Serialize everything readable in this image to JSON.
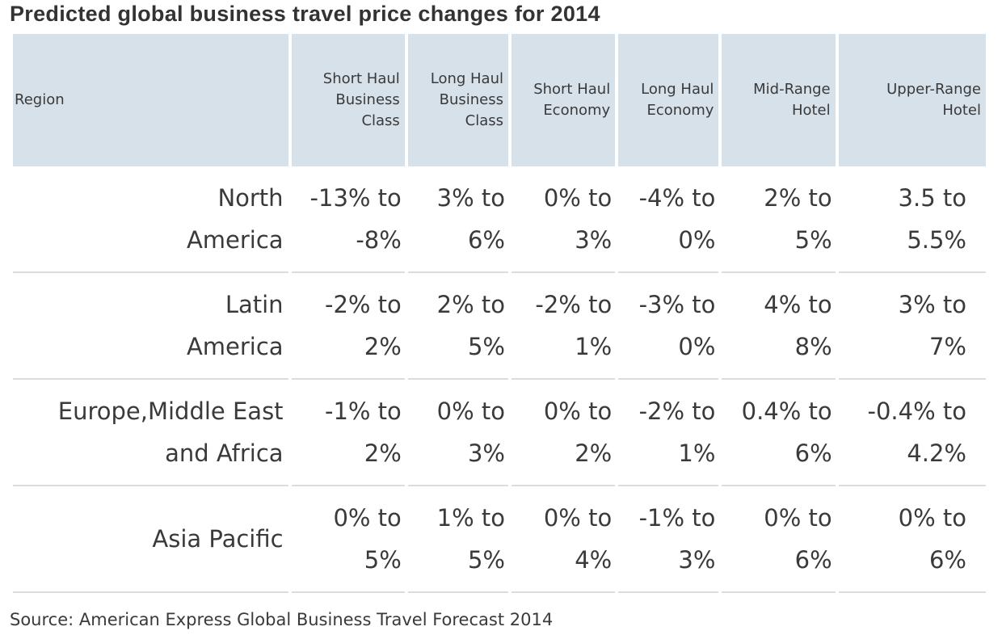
{
  "chart_data": {
    "type": "table",
    "title": "Predicted global business travel price changes for 2014",
    "columns": [
      {
        "key": "region",
        "label_lines": [
          "Region"
        ]
      },
      {
        "key": "shbc",
        "label_lines": [
          "Short Haul",
          "Business",
          "Class"
        ]
      },
      {
        "key": "lhbc",
        "label_lines": [
          "Long Haul",
          "Business",
          "Class"
        ]
      },
      {
        "key": "she",
        "label_lines": [
          "Short Haul",
          "Economy"
        ]
      },
      {
        "key": "lhe",
        "label_lines": [
          "Long Haul",
          "Economy"
        ]
      },
      {
        "key": "mrh",
        "label_lines": [
          "Mid-Range",
          "Hotel"
        ]
      },
      {
        "key": "urh",
        "label_lines": [
          "Upper-Range",
          "Hotel"
        ]
      }
    ],
    "rows": [
      {
        "region_lines": [
          "North",
          "America"
        ],
        "cells": [
          [
            "-13% to",
            "-8%"
          ],
          [
            "3% to",
            "6%"
          ],
          [
            "0% to",
            "3%"
          ],
          [
            "-4% to",
            "0%"
          ],
          [
            "2% to",
            "5%"
          ],
          [
            "3.5 to",
            "5.5%"
          ]
        ]
      },
      {
        "region_lines": [
          "Latin",
          "America"
        ],
        "cells": [
          [
            "-2% to",
            "2%"
          ],
          [
            "2% to",
            "5%"
          ],
          [
            "-2% to",
            "1%"
          ],
          [
            "-3% to",
            "0%"
          ],
          [
            "4% to",
            "8%"
          ],
          [
            "3% to",
            "7%"
          ]
        ]
      },
      {
        "region_lines": [
          "Europe,Middle East",
          "and Africa"
        ],
        "cells": [
          [
            "-1% to",
            "2%"
          ],
          [
            "0% to",
            "3%"
          ],
          [
            "0% to",
            "2%"
          ],
          [
            "-2% to",
            "1%"
          ],
          [
            "0.4% to",
            "6%"
          ],
          [
            "-0.4% to",
            "4.2%"
          ]
        ]
      },
      {
        "region_lines": [
          "Asia Pacific"
        ],
        "cells": [
          [
            "0% to",
            "5%"
          ],
          [
            "1% to",
            "5%"
          ],
          [
            "0% to",
            "4%"
          ],
          [
            "-1% to",
            "3%"
          ],
          [
            "0% to",
            "6%"
          ],
          [
            "0% to",
            "6%"
          ]
        ]
      }
    ],
    "source": "Source: American Express Global Business Travel Forecast 2014",
    "colors": {
      "header_bg": "#d6e1ea",
      "row_divider": "#dcdcdc",
      "text": "#3a3a3a"
    }
  }
}
